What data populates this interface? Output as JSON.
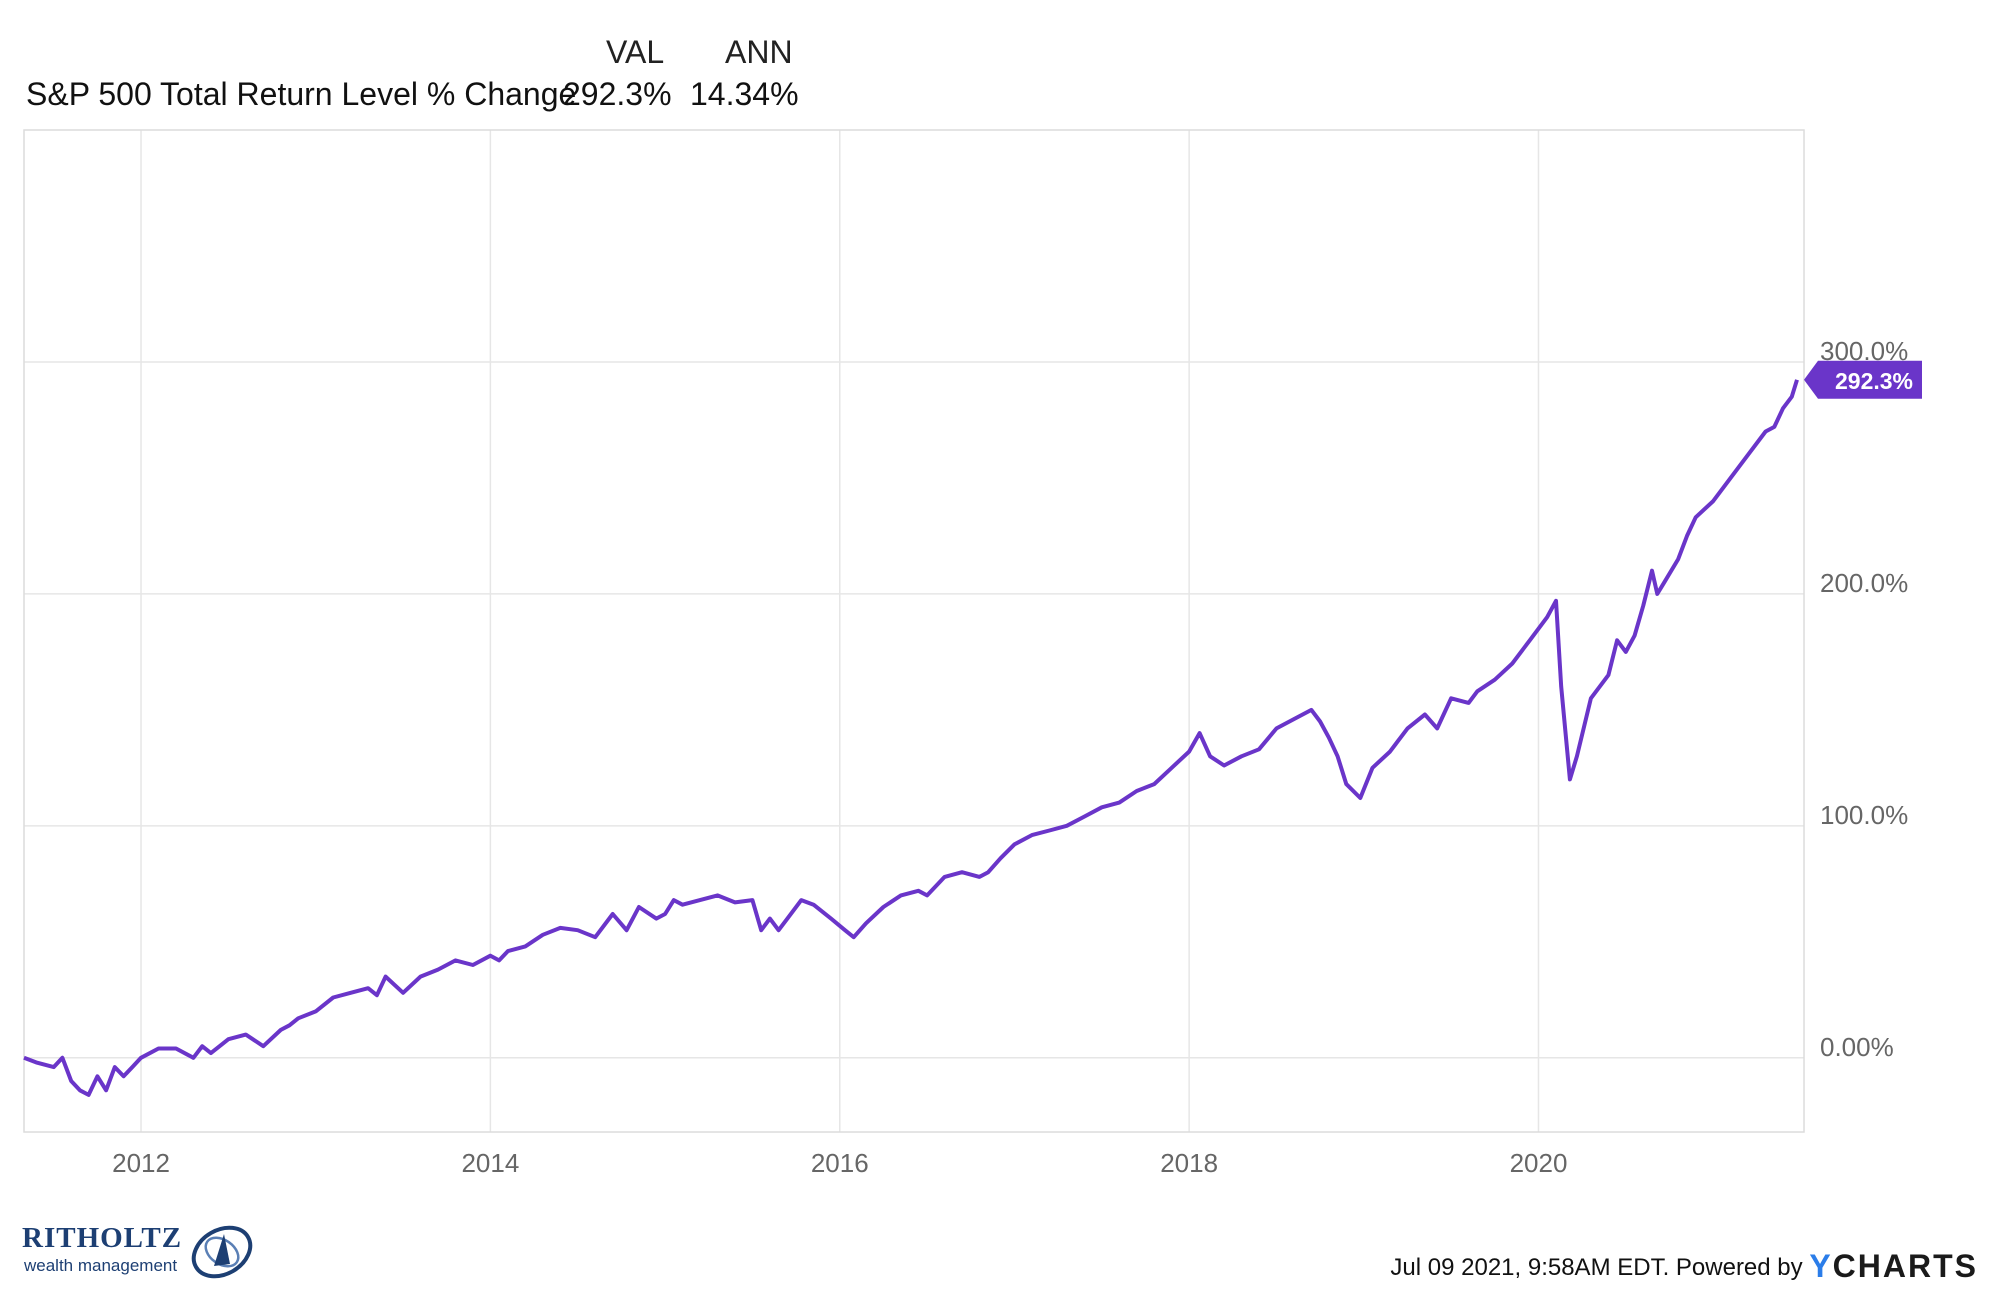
{
  "legend": {
    "col_val": "VAL",
    "col_ann": "ANN",
    "series_label": "S&P 500 Total Return Level % Change",
    "val": "292.3%",
    "ann": "14.34%"
  },
  "footer": {
    "timestamp": "Jul 09 2021, 9:58AM EDT.",
    "powered_by": "Powered by",
    "ycharts_y": "Y",
    "ycharts_rest": "CHARTS"
  },
  "brand": {
    "name": "RITHOLTZ",
    "subtitle": "wealth management"
  },
  "colors": {
    "line": "#6a35c9",
    "grid": "#e6e6e6",
    "axis_text": "#666666",
    "badge_bg": "#6a35c9",
    "badge_text": "#ffffff"
  },
  "chart_data": {
    "type": "line",
    "title": "",
    "xlabel": "",
    "ylabel": "",
    "x_ticks": [
      "2012",
      "2014",
      "2016",
      "2018",
      "2020"
    ],
    "y_ticks": [
      "0.00%",
      "100.0%",
      "200.0%",
      "300.0%"
    ],
    "xlim": [
      2011.33,
      2021.52
    ],
    "ylim": [
      -32,
      400
    ],
    "last_value_label": "292.3%",
    "grid": true,
    "series": [
      {
        "x": [
          2011.33,
          2011.4,
          2011.5,
          2011.55,
          2011.6,
          2011.65,
          2011.7,
          2011.75,
          2011.8,
          2011.85,
          2011.9,
          2011.95,
          2012.0,
          2012.1,
          2012.2,
          2012.3,
          2012.35,
          2012.4,
          2012.45,
          2012.5,
          2012.6,
          2012.7,
          2012.8,
          2012.85,
          2012.9,
          2013.0,
          2013.1,
          2013.2,
          2013.3,
          2013.35,
          2013.4,
          2013.5,
          2013.6,
          2013.7,
          2013.8,
          2013.9,
          2014.0,
          2014.05,
          2014.1,
          2014.2,
          2014.3,
          2014.4,
          2014.5,
          2014.6,
          2014.7,
          2014.78,
          2014.85,
          2014.95,
          2015.0,
          2015.05,
          2015.1,
          2015.2,
          2015.3,
          2015.4,
          2015.5,
          2015.55,
          2015.6,
          2015.65,
          2015.7,
          2015.78,
          2015.85,
          2015.95,
          2016.03,
          2016.08,
          2016.15,
          2016.25,
          2016.35,
          2016.45,
          2016.5,
          2016.6,
          2016.7,
          2016.8,
          2016.85,
          2016.92,
          2017.0,
          2017.1,
          2017.2,
          2017.3,
          2017.4,
          2017.5,
          2017.6,
          2017.7,
          2017.8,
          2017.9,
          2018.0,
          2018.06,
          2018.12,
          2018.2,
          2018.3,
          2018.4,
          2018.5,
          2018.6,
          2018.7,
          2018.75,
          2018.8,
          2018.85,
          2018.9,
          2018.98,
          2019.05,
          2019.15,
          2019.25,
          2019.35,
          2019.42,
          2019.5,
          2019.6,
          2019.65,
          2019.75,
          2019.85,
          2019.95,
          2020.05,
          2020.1,
          2020.13,
          2020.18,
          2020.22,
          2020.3,
          2020.4,
          2020.45,
          2020.5,
          2020.55,
          2020.6,
          2020.65,
          2020.68,
          2020.72,
          2020.8,
          2020.85,
          2020.9,
          2021.0,
          2021.1,
          2021.2,
          2021.3,
          2021.35,
          2021.4,
          2021.45,
          2021.48
        ],
        "values": [
          0,
          -2,
          -4,
          0,
          -10,
          -14,
          -16,
          -8,
          -14,
          -4,
          -8,
          -4,
          0,
          4,
          4,
          0,
          5,
          2,
          5,
          8,
          10,
          5,
          12,
          14,
          17,
          20,
          26,
          28,
          30,
          27,
          35,
          28,
          35,
          38,
          42,
          40,
          44,
          42,
          46,
          48,
          53,
          56,
          55,
          52,
          62,
          55,
          65,
          60,
          62,
          68,
          66,
          68,
          70,
          67,
          68,
          55,
          60,
          55,
          60,
          68,
          66,
          60,
          55,
          52,
          58,
          65,
          70,
          72,
          70,
          78,
          80,
          78,
          80,
          86,
          92,
          96,
          98,
          100,
          104,
          108,
          110,
          115,
          118,
          125,
          132,
          140,
          130,
          126,
          130,
          133,
          142,
          146,
          150,
          145,
          138,
          130,
          118,
          112,
          125,
          132,
          142,
          148,
          142,
          155,
          153,
          158,
          163,
          170,
          180,
          190,
          197,
          160,
          120,
          130,
          155,
          165,
          180,
          175,
          182,
          195,
          210,
          200,
          205,
          215,
          225,
          233,
          240,
          250,
          260,
          270,
          272,
          280,
          285,
          292.3
        ]
      }
    ]
  }
}
